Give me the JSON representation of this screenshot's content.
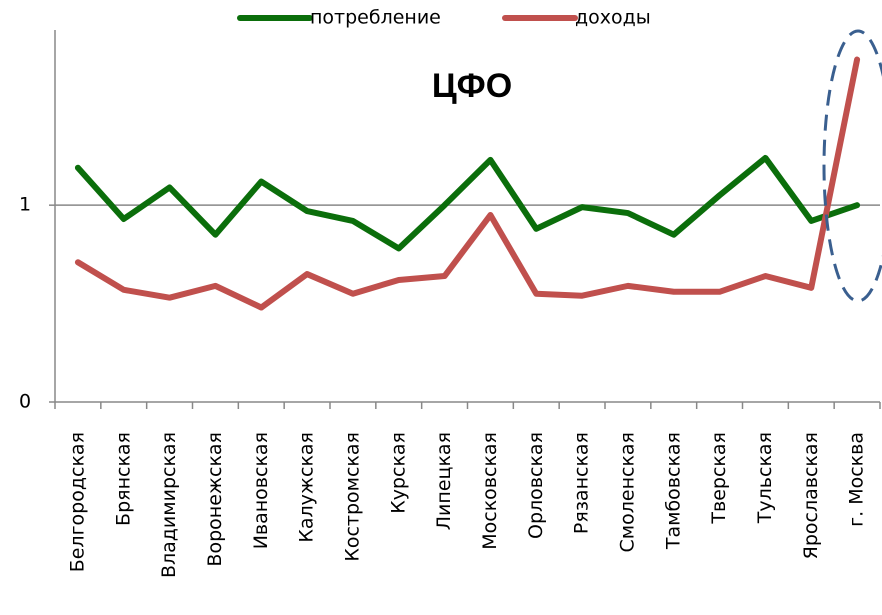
{
  "chart_data": {
    "type": "line",
    "title": "ЦФО",
    "categories": [
      "Белгородская",
      "Брянская",
      "Владимирская",
      "Воронежская",
      "Ивановская",
      "Калужская",
      "Костромская",
      "Курская",
      "Липецкая",
      "Московская",
      "Орловская",
      "Рязанская",
      "Смоленская",
      "Тамбовская",
      "Тверская",
      "Тульская",
      "Ярославская",
      "г. Москва"
    ],
    "series": [
      {
        "name": "потребление",
        "color": "#0b6e0b",
        "values": [
          1.19,
          0.93,
          1.09,
          0.85,
          1.12,
          0.97,
          0.92,
          0.78,
          1.0,
          1.23,
          0.88,
          0.99,
          0.96,
          0.85,
          1.05,
          1.24,
          0.92,
          1.0
        ]
      },
      {
        "name": "доходы",
        "color": "#c0504d",
        "values": [
          0.71,
          0.57,
          0.53,
          0.59,
          0.48,
          0.65,
          0.55,
          0.62,
          0.64,
          0.95,
          0.55,
          0.54,
          0.59,
          0.56,
          0.56,
          0.64,
          0.58,
          1.74
        ]
      }
    ],
    "ylim": [
      0,
      1.89
    ],
    "yticks": [
      0,
      1
    ],
    "grid": true,
    "legend": "top"
  }
}
